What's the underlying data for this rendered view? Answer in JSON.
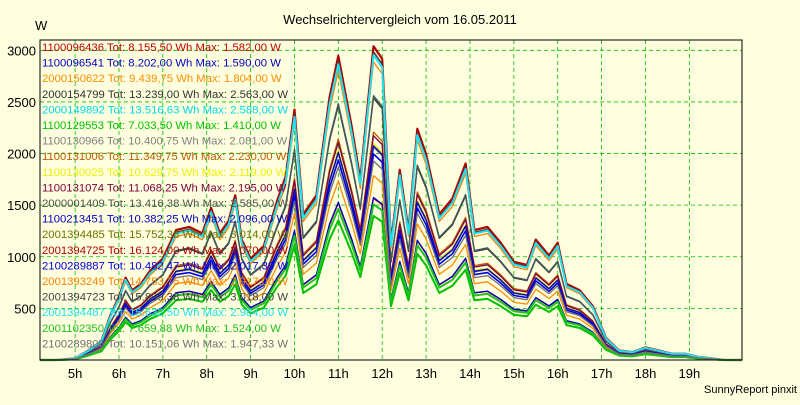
{
  "chart_data": {
    "type": "line",
    "title": "Wechselrichtervergleich vom 16.05.2011",
    "ylabel": "W",
    "xlabel": "",
    "footer": "SunnyReport pinxit",
    "ylim": [
      0,
      3100
    ],
    "yticks": [
      500,
      1000,
      1500,
      2000,
      2500,
      3000
    ],
    "xlim": [
      4.2,
      20.2
    ],
    "xticks": [
      {
        "v": 5,
        "label": "5h"
      },
      {
        "v": 6,
        "label": "6h"
      },
      {
        "v": 7,
        "label": "7h"
      },
      {
        "v": 8,
        "label": "8h"
      },
      {
        "v": 9,
        "label": "9h"
      },
      {
        "v": 10,
        "label": "10h"
      },
      {
        "v": 11,
        "label": "11h"
      },
      {
        "v": 12,
        "label": "12h"
      },
      {
        "v": 13,
        "label": "13h"
      },
      {
        "v": 14,
        "label": "14h"
      },
      {
        "v": 15,
        "label": "15h"
      },
      {
        "v": 16,
        "label": "16h"
      },
      {
        "v": 17,
        "label": "17h"
      },
      {
        "v": 18,
        "label": "18h"
      },
      {
        "v": 19,
        "label": "19h"
      }
    ],
    "grid": true,
    "legend_position": "top-left",
    "x": [
      4.2,
      4.6,
      5.0,
      5.3,
      5.6,
      5.8,
      6.0,
      6.15,
      6.3,
      6.5,
      6.7,
      7.0,
      7.3,
      7.6,
      7.9,
      8.1,
      8.3,
      8.5,
      8.65,
      8.8,
      9.0,
      9.3,
      9.6,
      9.8,
      10.0,
      10.2,
      10.5,
      10.8,
      11.0,
      11.3,
      11.5,
      11.8,
      12.0,
      12.2,
      12.4,
      12.6,
      12.8,
      13.0,
      13.3,
      13.6,
      13.9,
      14.1,
      14.4,
      14.7,
      15.0,
      15.3,
      15.5,
      15.8,
      16.0,
      16.2,
      16.5,
      16.8,
      17.1,
      17.4,
      17.7,
      18.0,
      18.3,
      18.6,
      18.9,
      19.2,
      19.5,
      19.8,
      20.2
    ],
    "profile": [
      0,
      0,
      0.005,
      0.03,
      0.06,
      0.14,
      0.2,
      0.26,
      0.22,
      0.24,
      0.28,
      0.32,
      0.41,
      0.42,
      0.4,
      0.48,
      0.4,
      0.44,
      0.52,
      0.38,
      0.32,
      0.36,
      0.5,
      0.58,
      0.79,
      0.46,
      0.52,
      0.83,
      0.96,
      0.74,
      0.57,
      0.99,
      0.95,
      0.37,
      0.6,
      0.41,
      0.73,
      0.65,
      0.46,
      0.51,
      0.62,
      0.41,
      0.42,
      0.37,
      0.31,
      0.3,
      0.38,
      0.33,
      0.37,
      0.24,
      0.22,
      0.17,
      0.07,
      0.03,
      0.025,
      0.04,
      0.03,
      0.02,
      0.02,
      0.01,
      0.005,
      0,
      0
    ],
    "series": [
      {
        "name": "1100096436",
        "label": "1100096436 Tot: 8.155,50 Wh Max: 1.582,00 W",
        "color": "#c00000",
        "peak": 1582,
        "width": 1.3
      },
      {
        "name": "1100096541",
        "label": "1100096541 Tot: 8.202,00 Wh Max: 1.590,00 W",
        "color": "#0000c0",
        "peak": 1590,
        "width": 1.3
      },
      {
        "name": "2000150622",
        "label": "2000150622 Tot: 9.439,75 Wh Max: 1.804,00 W",
        "color": "#ff8c00",
        "peak": 1804,
        "width": 1.3
      },
      {
        "name": "2000154799",
        "label": "2000154799 Tot: 13.239,00 Wh Max: 2.563,00 W",
        "color": "#303030",
        "peak": 2563,
        "width": 1.3
      },
      {
        "name": "2000149892",
        "label": "2000149892 Tot: 13.516,63 Wh Max: 2.588,00 W",
        "color": "#00d8e8",
        "peak": 2588,
        "width": 1.3
      },
      {
        "name": "1100129553",
        "label": "1100129553 Tot: 7.033,50 Wh Max: 1.410,00 W",
        "color": "#00c000",
        "peak": 1410,
        "width": 2.0
      },
      {
        "name": "1100130966",
        "label": "1100130966 Tot: 10.400,75 Wh Max: 2.081,00 W",
        "color": "#808080",
        "peak": 2081,
        "width": 1.3
      },
      {
        "name": "1100131006",
        "label": "1100131006 Tot: 11.349,75 Wh Max: 2.230,00 W",
        "color": "#b85c00",
        "peak": 2230,
        "width": 1.3
      },
      {
        "name": "1100130025",
        "label": "1100130025 Tot: 10.629,75 Wh Max: 2.119,00 W",
        "color": "#f0f000",
        "peak": 2119,
        "width": 1.3
      },
      {
        "name": "1100131074",
        "label": "1100131074 Tot: 11.068,25 Wh Max: 2.195,00 W",
        "color": "#800040",
        "peak": 2195,
        "width": 1.3
      },
      {
        "name": "2000001409",
        "label": "2000001409 Tot: 13.416,38 Wh Max: 2.585,00 W",
        "color": "#505050",
        "peak": 2585,
        "width": 1.3
      },
      {
        "name": "1100213451",
        "label": "1100213451 Tot: 10.382,25 Wh Max: 2.096,00 W",
        "color": "#0000c0",
        "peak": 2096,
        "width": 1.3
      },
      {
        "name": "2001394485",
        "label": "2001394485 Tot: 15.752,38 Wh Max: 3.014,00 W",
        "color": "#707000",
        "peak": 3014,
        "width": 1.3
      },
      {
        "name": "2001394725",
        "label": "2001394725 Tot: 16.124,00 Wh Max: 3.070,00 W",
        "color": "#b00000",
        "peak": 3070,
        "width": 2.2
      },
      {
        "name": "2100289887",
        "label": "2100289887 Tot: 10.482,47 Wh Max: 2.017,39 W",
        "color": "#0000e0",
        "peak": 2017,
        "width": 1.6
      },
      {
        "name": "2001393249",
        "label": "2001393249 Tot: 14.753,75 Wh Max: 2.917,00 W",
        "color": "#ff8000",
        "peak": 2917,
        "width": 1.3
      },
      {
        "name": "2001394723",
        "label": "2001394723 Tot: 15.809,38 Wh Max: 3.018,00 W",
        "color": "#404040",
        "peak": 3018,
        "width": 1.3
      },
      {
        "name": "2001394487",
        "label": "2001394487 Tot: 15.632,50 Wh Max: 2.984,00 W",
        "color": "#20e0f0",
        "peak": 2984,
        "width": 2.0
      },
      {
        "name": "2001102350",
        "label": "2001102350 Tot: 7.659,88 Wh Max: 1.524,00 W",
        "color": "#20c020",
        "peak": 1524,
        "width": 2.0
      },
      {
        "name": "2100289805",
        "label": "2100289805 Tot: 10.151,06 Wh Max: 1.947,33 W",
        "color": "#707070",
        "peak": 1947,
        "width": 1.3
      }
    ]
  }
}
